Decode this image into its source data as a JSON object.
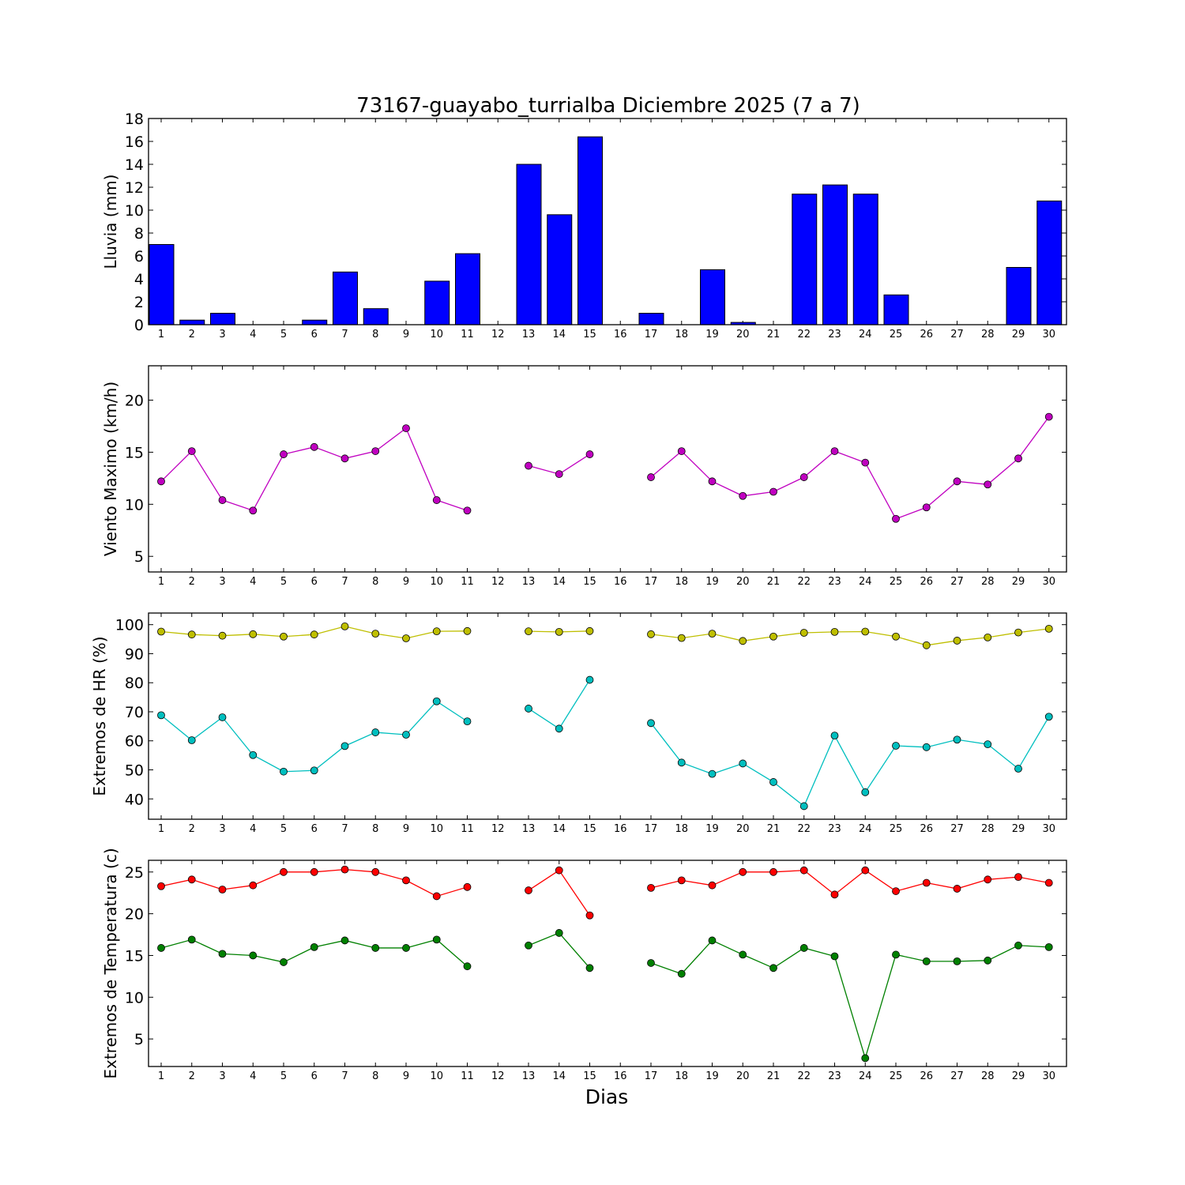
{
  "title": "73167-guayabo_turrialba Diciembre 2025  (7 a 7)",
  "xlabel": "Dias",
  "days": [
    1,
    2,
    3,
    4,
    5,
    6,
    7,
    8,
    9,
    10,
    11,
    12,
    13,
    14,
    15,
    16,
    17,
    18,
    19,
    20,
    21,
    22,
    23,
    24,
    25,
    26,
    27,
    28,
    29,
    30
  ],
  "chart_data": [
    {
      "type": "bar",
      "ylabel": "Lluvia (mm)",
      "ylim": [
        0,
        18
      ],
      "yticks": [
        0,
        2,
        4,
        6,
        8,
        10,
        12,
        14,
        16,
        18
      ],
      "series": [
        {
          "color": "#0000ff",
          "values": [
            7.0,
            0.4,
            1.0,
            0.0,
            0.0,
            0.4,
            4.6,
            1.4,
            0.0,
            3.8,
            6.2,
            0.0,
            14.0,
            9.6,
            16.4,
            0.0,
            1.0,
            0.0,
            4.8,
            0.2,
            0.0,
            11.4,
            12.2,
            11.4,
            2.6,
            0.0,
            0.0,
            0.0,
            5.0,
            10.8
          ]
        }
      ]
    },
    {
      "type": "line",
      "ylabel": "Viento Maximo (km/h)",
      "ylim": [
        3.5,
        23.3
      ],
      "yticks": [
        5,
        10,
        15,
        20
      ],
      "series": [
        {
          "color": "#c000c0",
          "values": [
            12.2,
            15.1,
            10.4,
            9.4,
            14.8,
            15.5,
            14.4,
            15.1,
            17.3,
            10.4,
            9.4,
            null,
            13.7,
            12.9,
            14.8,
            null,
            12.6,
            15.1,
            12.2,
            10.8,
            11.2,
            12.6,
            15.1,
            14.0,
            8.6,
            9.7,
            12.2,
            11.9,
            14.4,
            18.4
          ]
        }
      ]
    },
    {
      "type": "line",
      "ylabel": "Extremos de HR (%)",
      "ylim": [
        33,
        104
      ],
      "yticks": [
        40,
        50,
        60,
        70,
        80,
        90,
        100
      ],
      "series": [
        {
          "color": "#bfbf00",
          "values": [
            97.6,
            96.6,
            96.2,
            96.7,
            95.9,
            96.6,
            99.4,
            96.9,
            95.3,
            97.7,
            97.8,
            null,
            97.7,
            97.5,
            97.8,
            null,
            96.7,
            95.4,
            96.9,
            94.4,
            95.9,
            97.2,
            97.5,
            97.6,
            95.9,
            92.9,
            94.5,
            95.6,
            97.3,
            98.6
          ]
        },
        {
          "color": "#00bfbf",
          "values": [
            68.8,
            60.2,
            68.1,
            55.1,
            49.4,
            49.8,
            58.2,
            62.9,
            62.1,
            73.6,
            66.7,
            null,
            71.1,
            64.2,
            81.0,
            null,
            66.1,
            52.5,
            48.6,
            52.2,
            45.8,
            37.5,
            61.8,
            42.3,
            58.3,
            57.8,
            60.4,
            58.8,
            50.4,
            68.3
          ]
        }
      ]
    },
    {
      "type": "line",
      "ylabel": "Extremos de Temperatura (c)",
      "ylim": [
        1.7,
        26.4
      ],
      "yticks": [
        5,
        10,
        15,
        20,
        25
      ],
      "series": [
        {
          "color": "#ff0000",
          "values": [
            23.3,
            24.1,
            22.9,
            23.4,
            25.0,
            25.0,
            25.3,
            25.0,
            24.0,
            22.1,
            23.2,
            null,
            22.8,
            25.2,
            19.8,
            null,
            23.1,
            24.0,
            23.4,
            25.0,
            25.0,
            25.2,
            22.3,
            25.2,
            22.7,
            23.7,
            23.0,
            24.1,
            24.4,
            23.7
          ]
        },
        {
          "color": "#008000",
          "values": [
            15.9,
            16.9,
            15.2,
            15.0,
            14.2,
            16.0,
            16.8,
            15.9,
            15.9,
            16.9,
            13.7,
            null,
            16.2,
            17.7,
            13.5,
            null,
            14.1,
            12.8,
            16.8,
            15.1,
            13.5,
            15.9,
            14.9,
            2.7,
            15.1,
            14.3,
            14.3,
            14.4,
            16.2,
            16.0
          ]
        }
      ]
    }
  ]
}
